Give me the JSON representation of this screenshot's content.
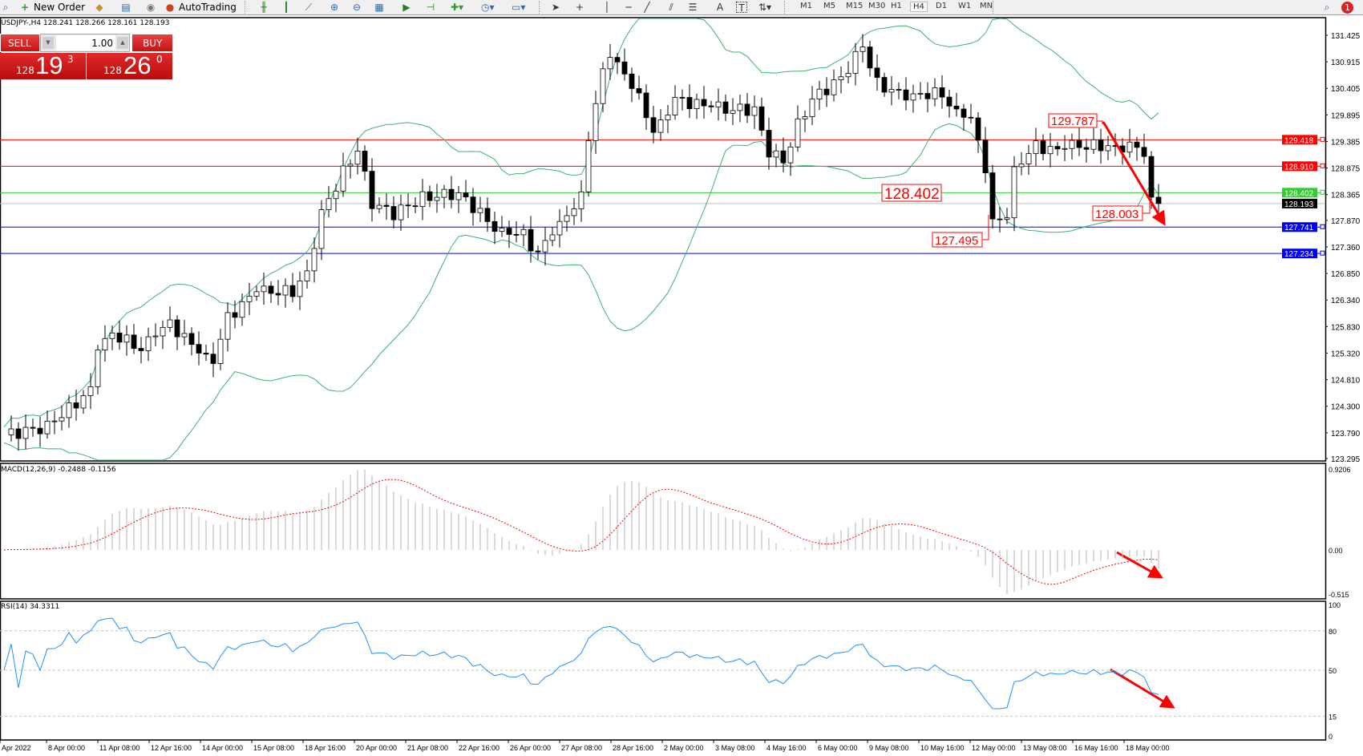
{
  "toolbar": {
    "new_order": "New Order",
    "auto_trading": "AutoTrading",
    "timeframes": [
      "M1",
      "M5",
      "M15",
      "M30",
      "H1",
      "H4",
      "D1",
      "W1",
      "MN"
    ],
    "active_timeframe": "H4",
    "notification_count": "1",
    "text_tool": "A",
    "label_tool": "T"
  },
  "chart_header": "USDJPY-,H4  128.241 128.266 128.161 128.193",
  "trade_panel": {
    "sell_label": "SELL",
    "buy_label": "BUY",
    "lot": "1.00",
    "sell_price": {
      "prefix": "128",
      "big": "19",
      "sup": "3"
    },
    "buy_price": {
      "prefix": "128",
      "big": "26",
      "sup": "0"
    }
  },
  "price_axis": {
    "ticks": [
      "131.425",
      "130.915",
      "130.405",
      "129.895",
      "129.385",
      "128.875",
      "128.365",
      "127.870",
      "127.360",
      "126.850",
      "126.340",
      "125.830",
      "125.320",
      "124.810",
      "124.300",
      "123.790",
      "123.295"
    ],
    "bid": "128.193",
    "bid_color": "#000000"
  },
  "levels": [
    {
      "price": "129.418",
      "color": "#ff0000"
    },
    {
      "price": "128.910",
      "color": "#ff0000"
    },
    {
      "price": "128.402",
      "color": "#33cc33"
    },
    {
      "price": "127.741",
      "color": "#0000ff"
    },
    {
      "price": "127.234",
      "color": "#0000ff"
    }
  ],
  "annotations": [
    "129.787",
    "128.402",
    "127.495",
    "128.003"
  ],
  "close_keypoints": [
    [
      0,
      123.75
    ],
    [
      6,
      123.9
    ],
    [
      12,
      124.6
    ],
    [
      13,
      125.5
    ],
    [
      15,
      125.7
    ],
    [
      19,
      125.4
    ],
    [
      23,
      125.9
    ],
    [
      25,
      125.6
    ],
    [
      29,
      125.2
    ],
    [
      31,
      126.0
    ],
    [
      35,
      126.5
    ],
    [
      40,
      126.5
    ],
    [
      42,
      126.9
    ],
    [
      44,
      128.0
    ],
    [
      47,
      128.8
    ],
    [
      49,
      129.2
    ],
    [
      51,
      128.2
    ],
    [
      54,
      128.0
    ],
    [
      58,
      128.3
    ],
    [
      63,
      128.4
    ],
    [
      66,
      128.0
    ],
    [
      69,
      127.6
    ],
    [
      72,
      127.6
    ],
    [
      74,
      127.2
    ],
    [
      76,
      127.7
    ],
    [
      78,
      128.0
    ],
    [
      80,
      128.3
    ],
    [
      81,
      129.5
    ],
    [
      83,
      130.7
    ],
    [
      84,
      131.0
    ],
    [
      87,
      130.5
    ],
    [
      90,
      129.6
    ],
    [
      93,
      130.2
    ],
    [
      96,
      130.1
    ],
    [
      100,
      130.0
    ],
    [
      104,
      130.0
    ],
    [
      106,
      129.2
    ],
    [
      108,
      129.0
    ],
    [
      110,
      129.7
    ],
    [
      112,
      130.2
    ],
    [
      116,
      130.6
    ],
    [
      119,
      131.2
    ],
    [
      121,
      130.5
    ],
    [
      124,
      130.3
    ],
    [
      127,
      130.3
    ],
    [
      130,
      130.3
    ],
    [
      132,
      129.9
    ],
    [
      134,
      129.8
    ],
    [
      136,
      128.9
    ],
    [
      137,
      127.8
    ],
    [
      139,
      128.0
    ],
    [
      140,
      128.9
    ],
    [
      143,
      129.3
    ],
    [
      146,
      129.2
    ],
    [
      148,
      129.3
    ],
    [
      152,
      129.3
    ],
    [
      156,
      129.3
    ],
    [
      158,
      129.2
    ],
    [
      159,
      128.2
    ],
    [
      160,
      128.193
    ]
  ],
  "macd": {
    "label": "MACD(12,26,9) -0.2488 -0.1156",
    "ticks": [
      "0.9206",
      "0.00",
      "-0.515"
    ]
  },
  "rsi": {
    "label": "RSI(14) 34.3311",
    "ticks": [
      "100",
      "80",
      "50",
      "15",
      "0"
    ]
  },
  "time_axis": [
    "Apr 2022",
    "8 Apr 00:00",
    "11 Apr 08:00",
    "12 Apr 16:00",
    "14 Apr 00:00",
    "15 Apr 08:00",
    "18 Apr 16:00",
    "20 Apr 00:00",
    "21 Apr 08:00",
    "22 Apr 16:00",
    "26 Apr 00:00",
    "27 Apr 08:00",
    "28 Apr 16:00",
    "2 May 00:00",
    "3 May 08:00",
    "4 May 16:00",
    "6 May 00:00",
    "9 May 08:00",
    "10 May 16:00",
    "12 May 00:00",
    "13 May 08:00",
    "16 May 16:00",
    "18 May 00:00"
  ],
  "colors": {
    "bands": "#3cb371",
    "macd_hist": "#c0c0c0",
    "macd_signal": "#ff0000",
    "rsi": "#1e90ff",
    "arrow": "#ff0000"
  }
}
